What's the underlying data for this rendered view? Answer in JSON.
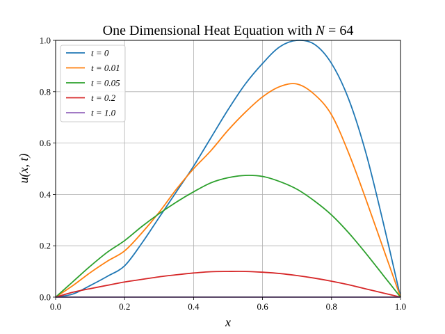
{
  "chart_data": {
    "type": "line",
    "title": "One Dimensional Heat Equation with N = 64",
    "title_parts": {
      "text": "One Dimensional Heat Equation with ",
      "var": "N",
      "eq": " = 64"
    },
    "xlabel": "x",
    "ylabel": "u(x, t)",
    "xlim": [
      0.0,
      1.0
    ],
    "ylim": [
      0.0,
      1.0
    ],
    "xticks": [
      "0.0",
      "0.2",
      "0.4",
      "0.6",
      "0.8",
      "1.0"
    ],
    "yticks": [
      "0.0",
      "0.2",
      "0.4",
      "0.6",
      "0.8",
      "1.0"
    ],
    "grid": true,
    "legend_position": "upper-left",
    "x": [
      0.0,
      0.05,
      0.1,
      0.15,
      0.2,
      0.25,
      0.3,
      0.35,
      0.4,
      0.45,
      0.5,
      0.55,
      0.6,
      0.65,
      0.7,
      0.75,
      0.8,
      0.85,
      0.9,
      0.95,
      1.0
    ],
    "series": [
      {
        "name": "t = 0",
        "color": "#1f77b4",
        "values": [
          0.0,
          0.012,
          0.045,
          0.081,
          0.122,
          0.21,
          0.31,
          0.41,
          0.51,
          0.62,
          0.73,
          0.83,
          0.91,
          0.975,
          1.0,
          0.985,
          0.91,
          0.77,
          0.56,
          0.29,
          0.0
        ]
      },
      {
        "name": "t = 0.01",
        "color": "#ff7f0e",
        "values": [
          0.0,
          0.045,
          0.095,
          0.14,
          0.18,
          0.25,
          0.33,
          0.42,
          0.5,
          0.57,
          0.65,
          0.72,
          0.78,
          0.82,
          0.83,
          0.79,
          0.71,
          0.56,
          0.38,
          0.19,
          0.0
        ]
      },
      {
        "name": "t = 0.05",
        "color": "#2ca02c",
        "values": [
          0.0,
          0.06,
          0.12,
          0.175,
          0.22,
          0.275,
          0.325,
          0.37,
          0.41,
          0.445,
          0.465,
          0.474,
          0.47,
          0.45,
          0.42,
          0.375,
          0.32,
          0.25,
          0.17,
          0.085,
          0.0
        ]
      },
      {
        "name": "t = 0.2",
        "color": "#d62728",
        "values": [
          0.0,
          0.019,
          0.033,
          0.046,
          0.059,
          0.069,
          0.079,
          0.087,
          0.094,
          0.099,
          0.1,
          0.1,
          0.097,
          0.092,
          0.084,
          0.074,
          0.062,
          0.048,
          0.032,
          0.016,
          0.0
        ]
      },
      {
        "name": "t = 1.0",
        "color": "#9467bd",
        "values": [
          0.0,
          0.0,
          0.0,
          0.0,
          0.0,
          0.0,
          0.0,
          0.0,
          0.0,
          0.0,
          0.0,
          0.0,
          0.0,
          0.0,
          0.0,
          0.0,
          0.0,
          0.0,
          0.0,
          0.0,
          0.0
        ]
      }
    ]
  }
}
